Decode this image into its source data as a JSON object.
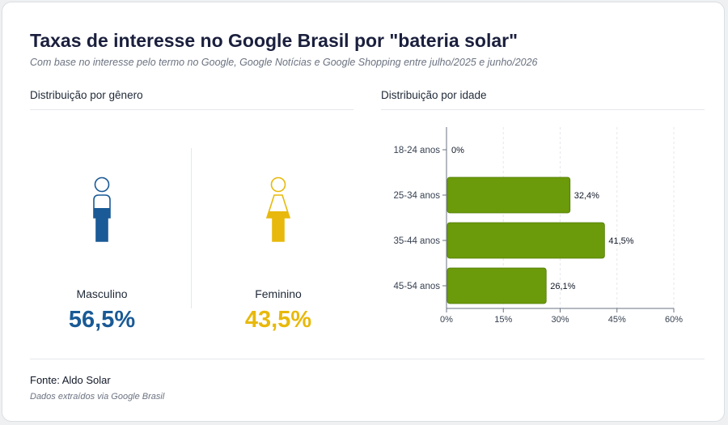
{
  "header": {
    "title": "Taxas de interesse no Google Brasil por \"bateria solar\"",
    "subtitle": "Com base no interesse pelo termo no Google, Google Notícias e Google Shopping entre julho/2025 e junho/2026"
  },
  "gender": {
    "heading": "Distribuição por gênero",
    "male": {
      "label": "Masculino",
      "value_text": "56,5%",
      "value": 56.5,
      "color": "#1a5a96",
      "icon": "male-person-icon"
    },
    "female": {
      "label": "Feminino",
      "value_text": "43,5%",
      "value": 43.5,
      "color": "#e8b90c",
      "icon": "female-person-icon"
    }
  },
  "age": {
    "heading": "Distribuição por idade"
  },
  "chart_data": {
    "type": "bar",
    "orientation": "horizontal",
    "categories": [
      "18-24 anos",
      "25-34 anos",
      "35-44 anos",
      "45-54 anos"
    ],
    "values": [
      0,
      32.4,
      41.5,
      26.1
    ],
    "value_labels": [
      "0%",
      "32,4%",
      "41,5%",
      "26,1%"
    ],
    "xlim": [
      0,
      60
    ],
    "xticks": [
      0,
      15,
      30,
      45,
      60
    ],
    "xtick_labels": [
      "0%",
      "15%",
      "30%",
      "45%",
      "60%"
    ],
    "bar_color": "#6b9a0a",
    "grid": "vertical dashed"
  },
  "footer": {
    "source": "Fonte: Aldo Solar",
    "note": "Dados extraídos via Google Brasil"
  }
}
